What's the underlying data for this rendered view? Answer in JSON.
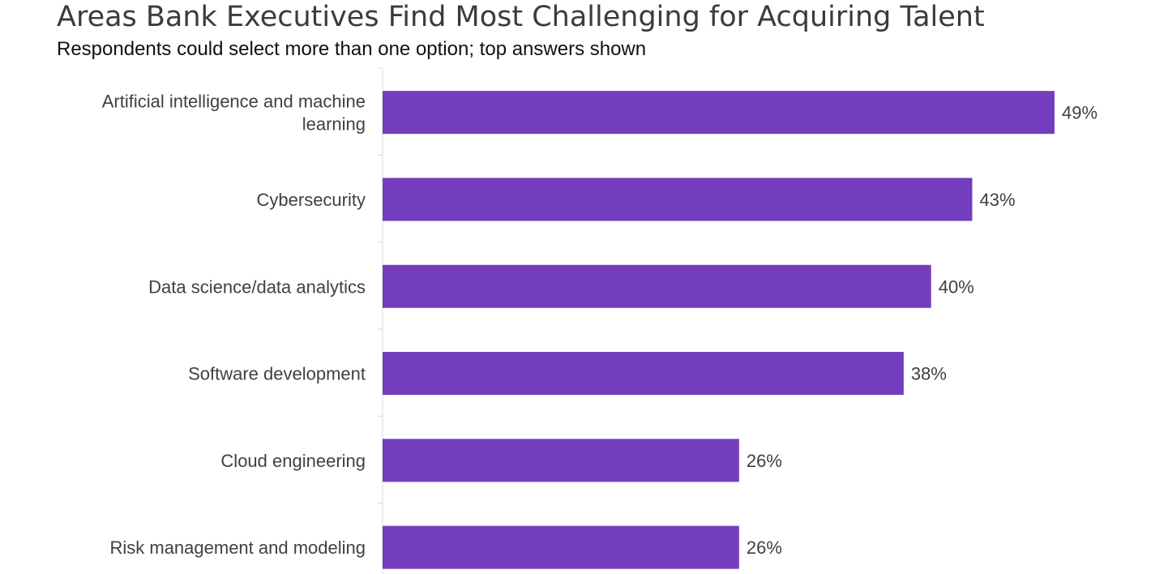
{
  "chart_data": {
    "type": "bar",
    "orientation": "horizontal",
    "title": "Areas Bank Executives Find Most Challenging for Acquiring Talent",
    "subtitle": "Respondents could select more than one option; top answers shown",
    "categories": [
      [
        "Artificial intelligence and machine",
        "learning"
      ],
      [
        "Cybersecurity"
      ],
      [
        "Data science/data analytics"
      ],
      [
        "Software development"
      ],
      [
        "Cloud engineering"
      ],
      [
        "Risk management and modeling"
      ]
    ],
    "values": [
      49,
      43,
      40,
      38,
      26,
      26
    ],
    "value_labels": [
      "49%",
      "43%",
      "40%",
      "38%",
      "26%",
      "26%"
    ],
    "unit": "%",
    "xlim": [
      0,
      49
    ],
    "bar_color": "#733dbd",
    "axis_color": "#d9d9d9",
    "grid": false,
    "legend": "none"
  }
}
